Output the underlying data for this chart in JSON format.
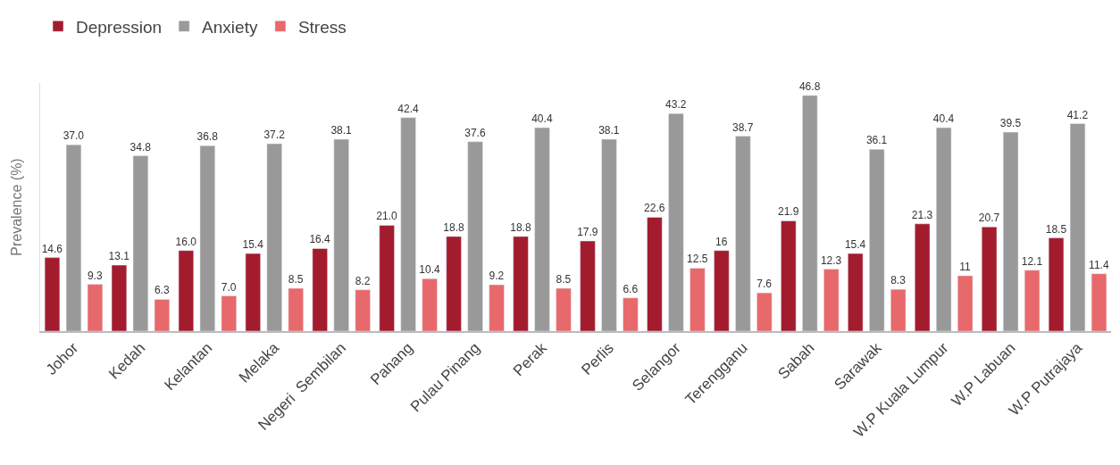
{
  "chart_data": {
    "type": "bar",
    "ylabel": "Prevalence (%)",
    "categories": [
      "Johor",
      "Kedah",
      "Kelantan",
      "Melaka",
      "Negeri  Sembilan",
      "Pahang",
      "Pulau Pinang",
      "Perak",
      "Perlis",
      "Selangor",
      "Terengganu",
      "Sabah",
      "Sarawak",
      "W.P Kuala Lumpur",
      "W.P Labuan",
      "W.P Putrajaya"
    ],
    "series": [
      {
        "name": "Depression",
        "color": "#a31c2e",
        "values": [
          14.6,
          13.1,
          16.0,
          15.4,
          16.4,
          21.0,
          18.8,
          18.8,
          17.9,
          22.6,
          16,
          21.9,
          15.4,
          21.3,
          20.7,
          18.5
        ],
        "value_labels": [
          "14.6",
          "13.1",
          "16.0",
          "15.4",
          "16.4",
          "21.0",
          "18.8",
          "18.8",
          "17.9",
          "22.6",
          "16",
          "21.9",
          "15.4",
          "21.3",
          "20.7",
          "18.5"
        ]
      },
      {
        "name": "Anxiety",
        "color": "#999999",
        "values": [
          37.0,
          34.8,
          36.8,
          37.2,
          38.1,
          42.4,
          37.6,
          40.4,
          38.1,
          43.2,
          38.7,
          46.8,
          36.1,
          40.4,
          39.5,
          41.2
        ],
        "value_labels": [
          "37.0",
          "34.8",
          "36.8",
          "37.2",
          "38.1",
          "42.4",
          "37.6",
          "40.4",
          "38.1",
          "43.2",
          "38.7",
          "46.8",
          "36.1",
          "40.4",
          "39.5",
          "41.2"
        ]
      },
      {
        "name": "Stress",
        "color": "#e8696b",
        "values": [
          9.3,
          6.3,
          7.0,
          8.5,
          8.2,
          10.4,
          9.2,
          8.5,
          6.6,
          12.5,
          7.6,
          12.3,
          8.3,
          11,
          12.1,
          11.4
        ],
        "value_labels": [
          "9.3",
          "6.3",
          "7.0",
          "8.5",
          "8.2",
          "10.4",
          "9.2",
          "8.5",
          "6.6",
          "12.5",
          "7.6",
          "12.3",
          "8.3",
          "11",
          "12.1",
          "11.4"
        ]
      }
    ],
    "legend": "top left",
    "tick_labels": "x"
  }
}
